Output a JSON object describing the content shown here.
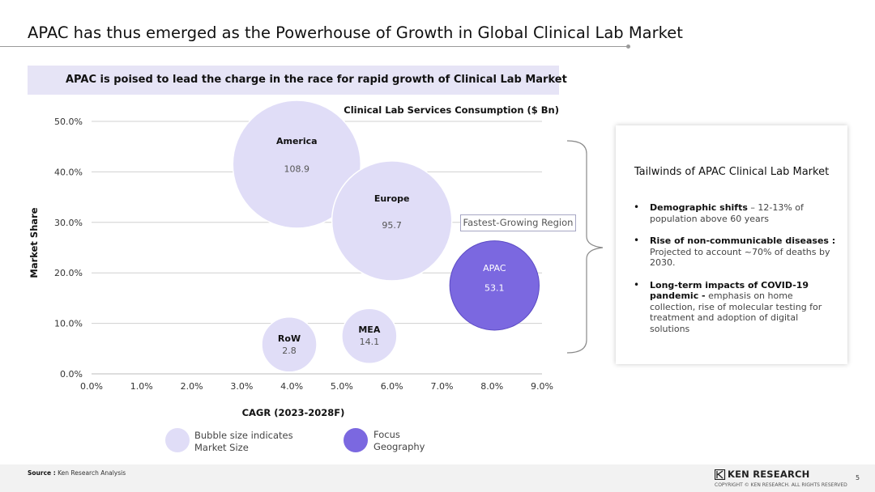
{
  "header": {
    "title": "APAC has thus emerged as the Powerhouse of Growth in Global Clinical Lab Market"
  },
  "banner": {
    "text": "APAC is poised to lead the charge in the race for rapid growth of Clinical Lab Market"
  },
  "chart_data": {
    "type": "bubble",
    "title": "Clinical Lab Services Consumption ($ Bn)",
    "xlabel": "CAGR (2023-2028F)",
    "ylabel": "Market Share",
    "xlim": [
      0,
      9
    ],
    "ylim": [
      0,
      50
    ],
    "x_ticks": [
      "0.0%",
      "1.0%",
      "2.0%",
      "3.0%",
      "4.0%",
      "5.0%",
      "6.0%",
      "7.0%",
      "8.0%",
      "9.0%"
    ],
    "y_ticks": [
      "0.0%",
      "10.0%",
      "20.0%",
      "30.0%",
      "40.0%",
      "50.0%"
    ],
    "grid": "horizontal",
    "points": [
      {
        "name": "America",
        "x": 4.1,
        "y": 41.5,
        "value": 108.9,
        "label": "108.9",
        "focus": false
      },
      {
        "name": "Europe",
        "x": 6.0,
        "y": 30.3,
        "value": 95.7,
        "label": "95.7",
        "focus": false
      },
      {
        "name": "APAC",
        "x": 8.05,
        "y": 17.5,
        "value": 53.1,
        "label": "53.1",
        "focus": true
      },
      {
        "name": "MEA",
        "x": 5.55,
        "y": 7.5,
        "value": 14.1,
        "label": "14.1",
        "focus": false
      },
      {
        "name": "RoW",
        "x": 3.95,
        "y": 5.8,
        "value": 2.8,
        "label": "2.8",
        "focus": false
      }
    ],
    "colors": {
      "bubble": "#e0ddf7",
      "focus": "#7b68e0",
      "focus_stroke": "#5b4ac4",
      "grid": "#d0d0d0"
    },
    "annotation": "Fastest-Growing Region"
  },
  "legend": {
    "items": [
      {
        "label_line1": "Bubble size indicates",
        "label_line2": "Market Size",
        "color": "#e0ddf7"
      },
      {
        "label_line1": "Focus",
        "label_line2": "Geography",
        "color": "#7b68e0"
      }
    ]
  },
  "panel": {
    "title": "Tailwinds of APAC Clinical Lab Market",
    "items": [
      {
        "bullet": "•",
        "bold": "Demographic shifts",
        "rest": " – 12-13% of population above 60 years"
      },
      {
        "bullet": "•",
        "bold": "Rise of non-communicable diseases :",
        "rest": " Projected to account ~70% of deaths by 2030."
      },
      {
        "bullet": "•",
        "bold": "Long-term impacts of COVID-19 pandemic -",
        "rest": " emphasis on home collection, rise of molecular testing for treatment and adoption of digital solutions"
      }
    ]
  },
  "footer": {
    "source_label": "Source :",
    "source_text": " Ken Research Analysis",
    "logo_text": "KEN RESEARCH",
    "copyright": "COPYRIGHT © KEN RESEARCH. ALL RIGHTS RESERVED",
    "page_number": "5"
  }
}
